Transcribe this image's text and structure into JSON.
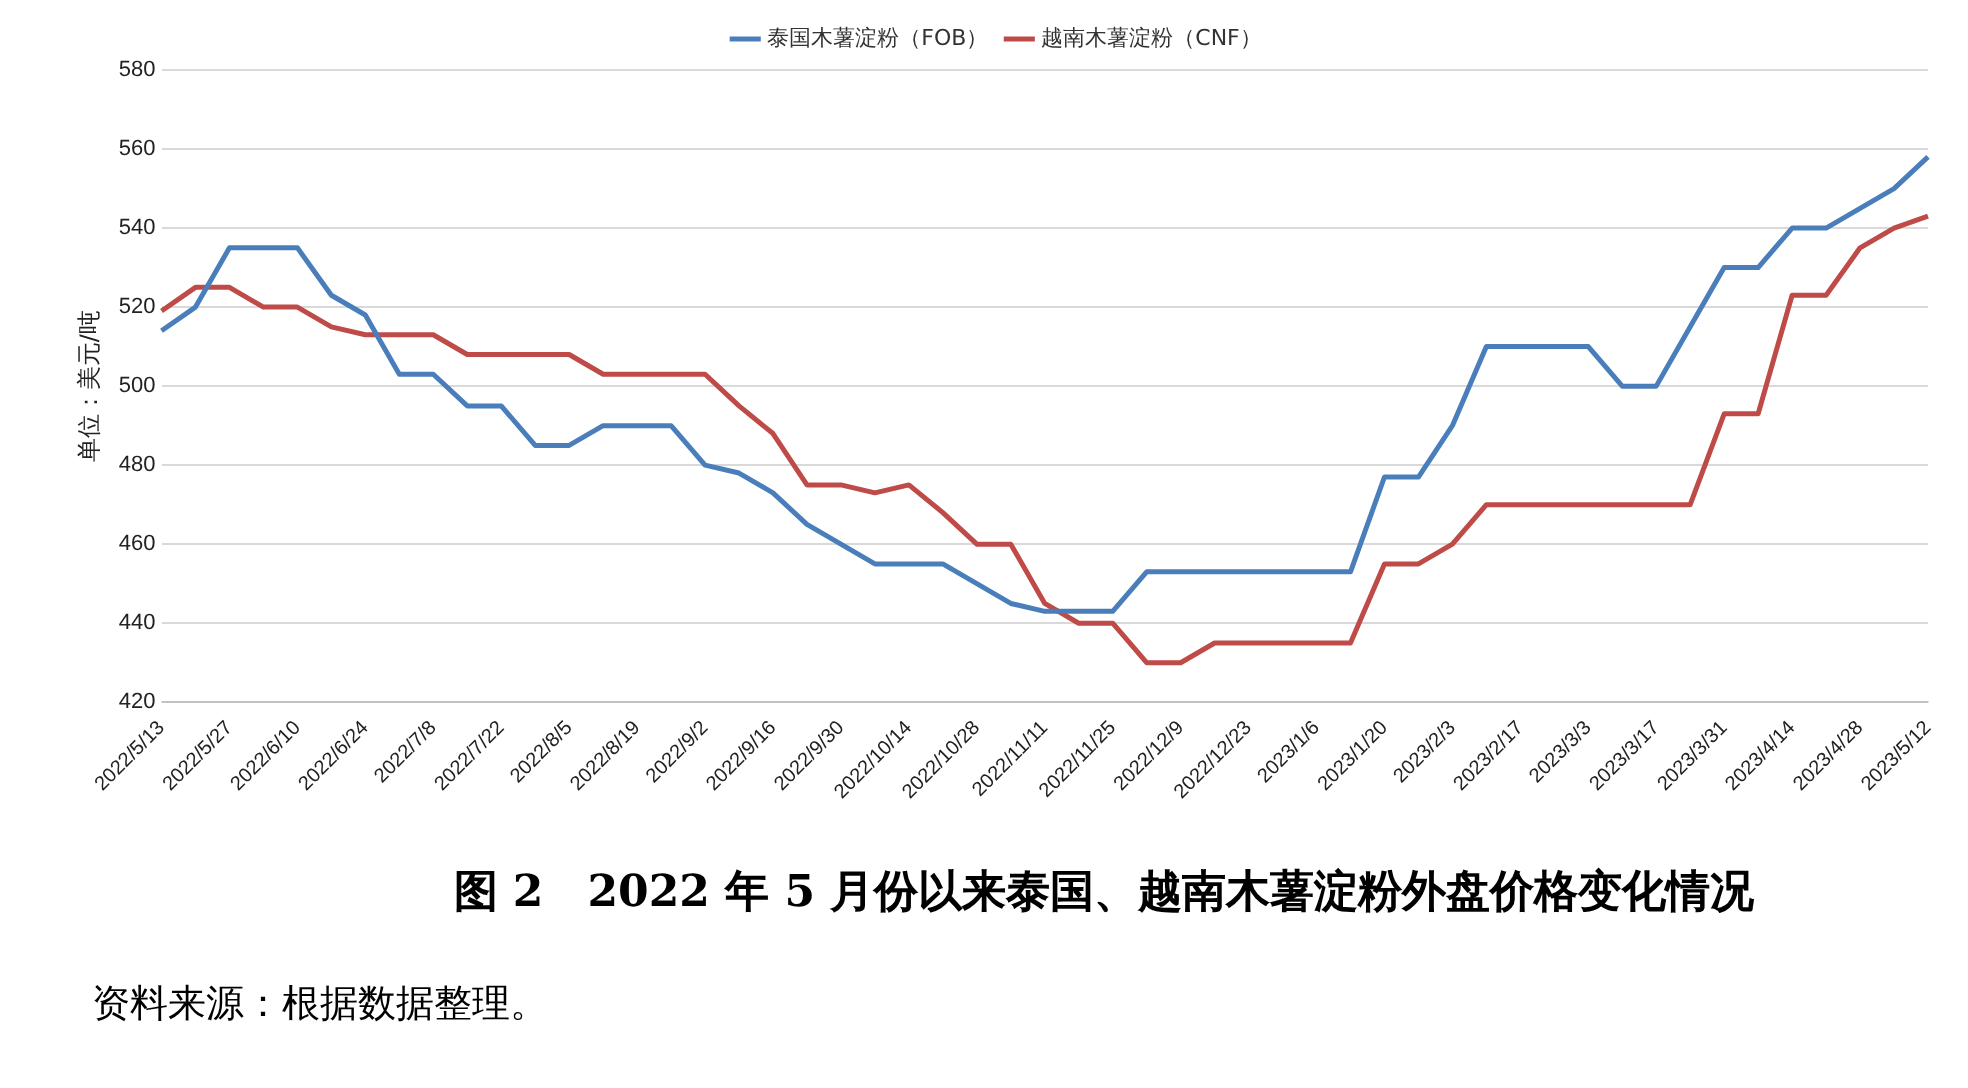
{
  "chart_data": {
    "type": "line",
    "title": "图 2　2022 年 5 月份以来泰国、越南木薯淀粉外盘价格变化情况",
    "ylabel": "单位：美元/吨",
    "annotations": [
      "资料来源：根据数据整理。"
    ],
    "categories": [
      "2022/5/13",
      null,
      "2022/5/27",
      null,
      "2022/6/10",
      null,
      "2022/6/24",
      null,
      "2022/7/8",
      null,
      "2022/7/22",
      null,
      "2022/8/5",
      null,
      "2022/8/19",
      null,
      "2022/9/2",
      null,
      "2022/9/16",
      null,
      "2022/9/30",
      null,
      "2022/10/14",
      null,
      "2022/10/28",
      null,
      "2022/11/11",
      null,
      "2022/11/25",
      null,
      "2022/12/9",
      null,
      "2022/12/23",
      null,
      "2023/1/6",
      null,
      "2023/1/20",
      null,
      "2023/2/3",
      null,
      "2023/2/17",
      null,
      "2023/3/3",
      null,
      "2023/3/17",
      null,
      "2023/3/31",
      null,
      "2023/4/14",
      null,
      "2023/4/28",
      null,
      "2023/5/12"
    ],
    "series": [
      {
        "name": "泰国木薯淀粉（FOB）",
        "color": "#4a7ebb",
        "values": [
          514,
          520,
          535,
          535,
          535,
          523,
          518,
          503,
          503,
          495,
          495,
          485,
          485,
          490,
          490,
          490,
          480,
          478,
          473,
          465,
          460,
          455,
          455,
          455,
          450,
          445,
          443,
          443,
          443,
          453,
          453,
          453,
          453,
          453,
          453,
          453,
          477,
          477,
          490,
          510,
          510,
          510,
          510,
          500,
          500,
          515,
          530,
          530,
          540,
          540,
          545,
          550,
          558
        ]
      },
      {
        "name": "越南木薯淀粉（CNF）",
        "color": "#be4b48",
        "values": [
          519,
          525,
          525,
          520,
          520,
          515,
          513,
          513,
          513,
          508,
          508,
          508,
          508,
          503,
          503,
          503,
          503,
          495,
          488,
          475,
          475,
          473,
          475,
          468,
          460,
          460,
          445,
          440,
          440,
          430,
          430,
          435,
          435,
          435,
          435,
          435,
          455,
          455,
          460,
          470,
          470,
          470,
          470,
          470,
          470,
          470,
          493,
          493,
          523,
          523,
          535,
          540,
          543
        ]
      }
    ],
    "ylim": [
      420,
      580
    ],
    "yticks": [
      420,
      440,
      460,
      480,
      500,
      520,
      540,
      560,
      580
    ],
    "grid": "y",
    "legend": "top",
    "marker": "none",
    "line_style": "solid"
  }
}
